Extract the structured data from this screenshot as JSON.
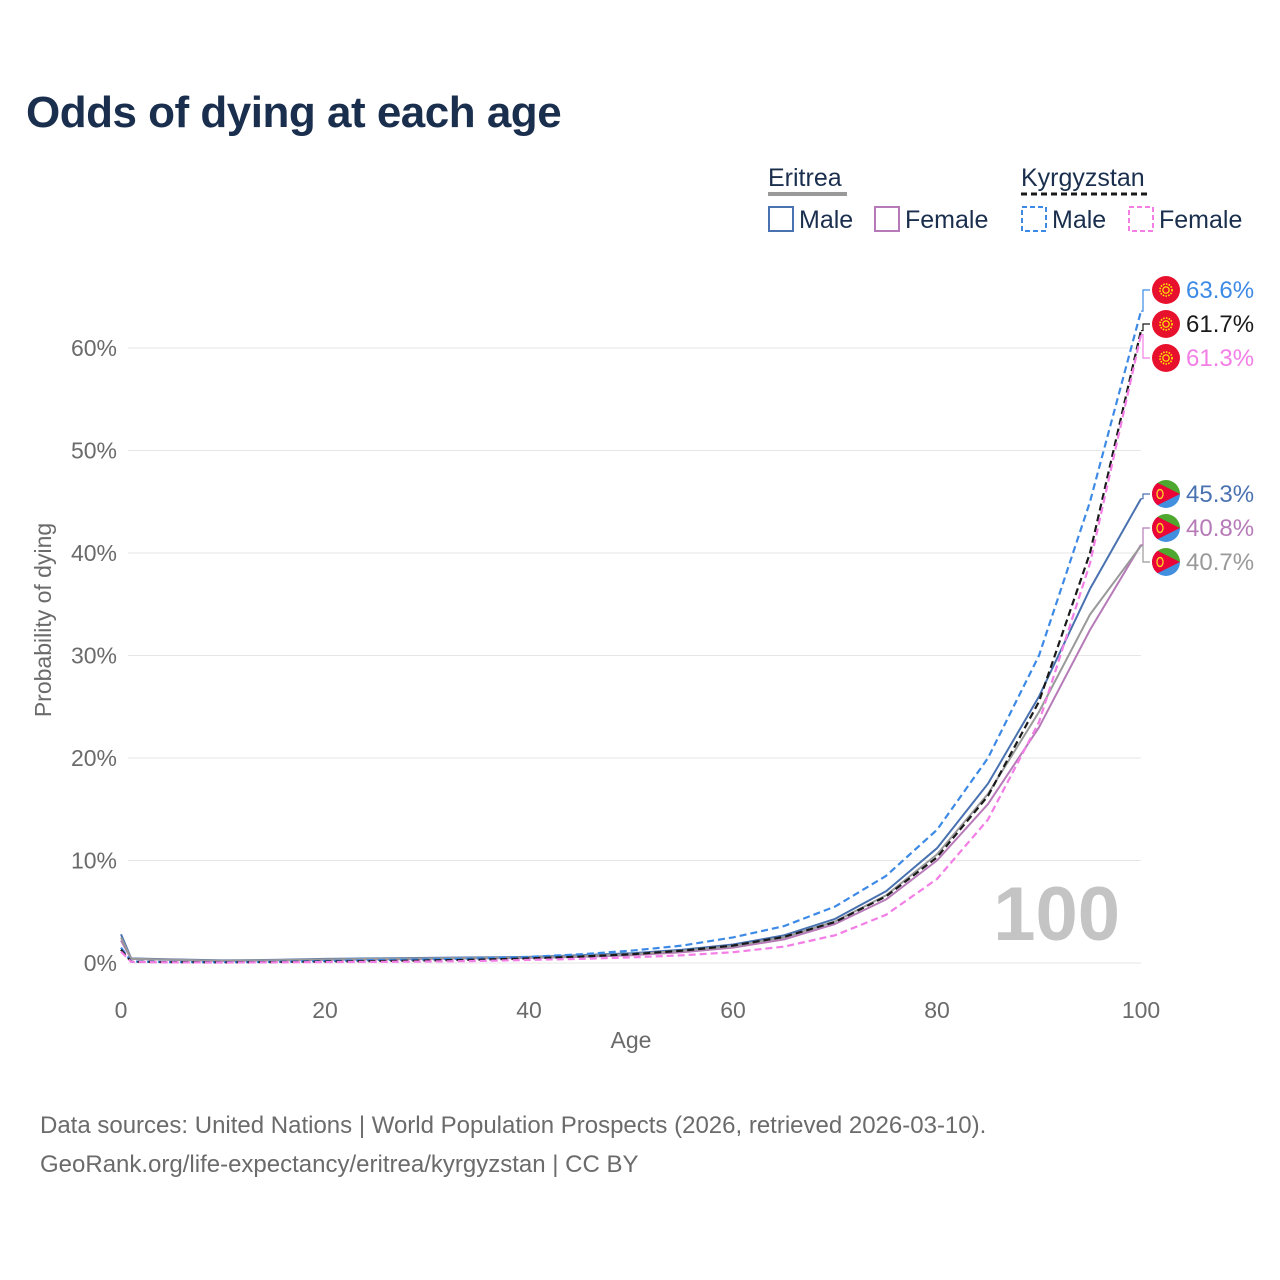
{
  "chart_data": {
    "type": "line",
    "title": "Odds of dying at each age",
    "xlabel": "Age",
    "ylabel": "Probability of dying",
    "xlim": [
      0,
      100
    ],
    "ylim": [
      0,
      65
    ],
    "xticks": [
      0,
      20,
      40,
      60,
      80,
      100
    ],
    "xtick_labels": [
      "0",
      "20",
      "40",
      "60",
      "80",
      "100"
    ],
    "yticks": [
      0,
      10,
      20,
      30,
      40,
      50,
      60
    ],
    "ytick_labels": [
      "0%",
      "10%",
      "20%",
      "30%",
      "40%",
      "50%",
      "60%"
    ],
    "current_age_label": "100",
    "legend": {
      "position": "top-right",
      "groups": [
        {
          "country": "Eritrea",
          "style": "solid",
          "items": [
            "Male",
            "Female"
          ]
        },
        {
          "country": "Kyrgyzstan",
          "style": "dashed",
          "items": [
            "Male",
            "Female"
          ]
        }
      ]
    },
    "series": [
      {
        "name": "Eritrea Male",
        "country": "Eritrea",
        "sex": "Male",
        "color": "#4a72b0",
        "dash": false,
        "final_label": "45.3%",
        "x": [
          0,
          1,
          5,
          10,
          15,
          20,
          25,
          30,
          35,
          40,
          45,
          50,
          55,
          60,
          65,
          70,
          75,
          80,
          85,
          90,
          95,
          100
        ],
        "y": [
          2.8,
          0.45,
          0.35,
          0.25,
          0.3,
          0.4,
          0.45,
          0.5,
          0.55,
          0.6,
          0.75,
          0.95,
          1.3,
          1.8,
          2.7,
          4.3,
          7.0,
          11.2,
          17.5,
          26.0,
          36.5,
          45.3
        ]
      },
      {
        "name": "Eritrea Female",
        "country": "Eritrea",
        "sex": "Female",
        "color": "#b77ab8",
        "dash": false,
        "final_label": "40.8%",
        "x": [
          0,
          1,
          5,
          10,
          15,
          20,
          25,
          30,
          35,
          40,
          45,
          50,
          55,
          60,
          65,
          70,
          75,
          80,
          85,
          90,
          95,
          100
        ],
        "y": [
          2.2,
          0.4,
          0.3,
          0.2,
          0.25,
          0.3,
          0.35,
          0.4,
          0.45,
          0.5,
          0.6,
          0.75,
          1.05,
          1.5,
          2.3,
          3.8,
          6.2,
          10.0,
          15.5,
          23.0,
          32.5,
          40.8
        ]
      },
      {
        "name": "Eritrea Total",
        "country": "Eritrea",
        "sex": "Total",
        "color": "#999999",
        "dash": false,
        "final_label": "40.7%",
        "x": [
          0,
          1,
          5,
          10,
          15,
          20,
          25,
          30,
          35,
          40,
          45,
          50,
          55,
          60,
          65,
          70,
          75,
          80,
          85,
          90,
          95,
          100
        ],
        "y": [
          2.5,
          0.42,
          0.32,
          0.22,
          0.27,
          0.35,
          0.4,
          0.45,
          0.5,
          0.55,
          0.68,
          0.85,
          1.18,
          1.65,
          2.5,
          4.05,
          6.6,
          10.6,
          16.5,
          24.5,
          34.0,
          40.7
        ]
      },
      {
        "name": "Kyrgyzstan Male",
        "country": "Kyrgyzstan",
        "sex": "Male",
        "color": "#3d8ae6",
        "dash": true,
        "final_label": "63.6%",
        "x": [
          0,
          1,
          5,
          10,
          15,
          20,
          25,
          30,
          35,
          40,
          45,
          50,
          55,
          60,
          65,
          70,
          75,
          80,
          85,
          90,
          95,
          100
        ],
        "y": [
          1.5,
          0.15,
          0.1,
          0.08,
          0.12,
          0.2,
          0.28,
          0.35,
          0.45,
          0.6,
          0.85,
          1.2,
          1.7,
          2.5,
          3.6,
          5.5,
          8.5,
          13.0,
          20.0,
          30.0,
          45.0,
          63.6
        ]
      },
      {
        "name": "Kyrgyzstan Total",
        "country": "Kyrgyzstan",
        "sex": "Total",
        "color": "#1a1a1a",
        "dash": true,
        "final_label": "61.7%",
        "x": [
          0,
          1,
          5,
          10,
          15,
          20,
          25,
          30,
          35,
          40,
          45,
          50,
          55,
          60,
          65,
          70,
          75,
          80,
          85,
          90,
          95,
          100
        ],
        "y": [
          1.3,
          0.13,
          0.08,
          0.06,
          0.09,
          0.14,
          0.19,
          0.24,
          0.32,
          0.45,
          0.62,
          0.85,
          1.2,
          1.7,
          2.55,
          4.0,
          6.5,
          10.3,
          16.3,
          25.5,
          40.0,
          61.7
        ]
      },
      {
        "name": "Kyrgyzstan Female",
        "country": "Kyrgyzstan",
        "sex": "Female",
        "color": "#f27ee6",
        "dash": true,
        "final_label": "61.3%",
        "x": [
          0,
          1,
          5,
          10,
          15,
          20,
          25,
          30,
          35,
          40,
          45,
          50,
          55,
          60,
          65,
          70,
          75,
          80,
          85,
          90,
          95,
          100
        ],
        "y": [
          1.1,
          0.11,
          0.06,
          0.05,
          0.07,
          0.09,
          0.11,
          0.15,
          0.2,
          0.3,
          0.4,
          0.55,
          0.75,
          1.05,
          1.6,
          2.7,
          4.7,
          8.2,
          14.0,
          23.5,
          39.0,
          61.3
        ]
      }
    ]
  },
  "footer": {
    "source_line": "Data sources: United Nations | World Population Prospects (2026, retrieved 2026-03-10).",
    "url_line": "GeoRank.org/life-expectancy/eritrea/kyrgyzstan | CC BY"
  },
  "colors": {
    "title": "#1a2e4d",
    "grid": "#e6e6e6",
    "axis_text": "#6b6b6b",
    "eritrea_flag_green": "#4ea72e",
    "eritrea_flag_blue": "#418fde",
    "eritrea_flag_red": "#ea0437",
    "kyrgyzstan_flag_red": "#e8112d",
    "kyrgyzstan_flag_sun": "#ffef00"
  }
}
